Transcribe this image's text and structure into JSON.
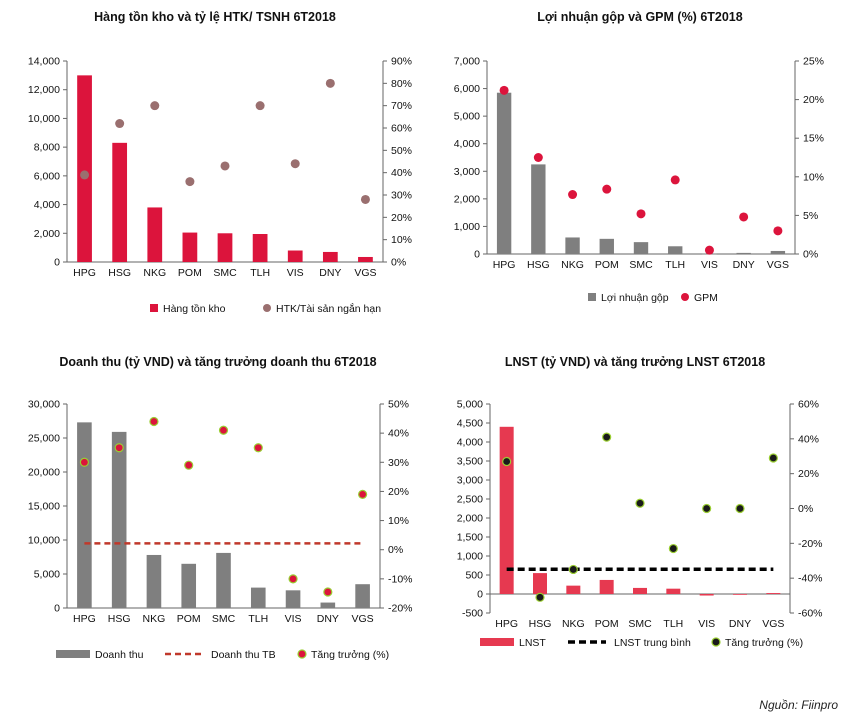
{
  "source": "Nguồn: Fiinpro",
  "colors": {
    "red": "#dc143c",
    "gray": "#7f7f7f",
    "mauve": "#9a6f6f",
    "lnst_red": "#e63950",
    "dark_dot": "#1a1a1a",
    "dot_edge_green": "#9acd32"
  },
  "chart_data": [
    {
      "type": "bar",
      "title": "Hàng tồn kho và tỷ lệ HTK/ TSNH 6T2018",
      "categories": [
        "HPG",
        "HSG",
        "NKG",
        "POM",
        "SMC",
        "TLH",
        "VIS",
        "DNY",
        "VGS"
      ],
      "left_ticks": [
        "0",
        "2,000",
        "4,000",
        "6,000",
        "8,000",
        "10,000",
        "12,000",
        "14,000"
      ],
      "right_ticks": [
        "0%",
        "10%",
        "20%",
        "30%",
        "40%",
        "50%",
        "60%",
        "70%",
        "80%",
        "90%"
      ],
      "ylim": [
        0,
        14000
      ],
      "y2lim": [
        0,
        90
      ],
      "series": [
        {
          "name": "Hàng tồn kho",
          "kind": "bar",
          "axis": "left",
          "color": "#dc143c",
          "values": [
            13000,
            8300,
            3800,
            2050,
            2000,
            1950,
            800,
            700,
            350
          ]
        },
        {
          "name": "HTK/Tài sản ngắn hạn",
          "kind": "dot",
          "axis": "right",
          "color": "#9a6f6f",
          "values": [
            39,
            62,
            70,
            36,
            43,
            70,
            44,
            80,
            28
          ]
        }
      ],
      "legend": "bottom"
    },
    {
      "type": "bar",
      "title": "Lợi nhuận gộp và GPM (%) 6T2018",
      "categories": [
        "HPG",
        "HSG",
        "NKG",
        "POM",
        "SMC",
        "TLH",
        "VIS",
        "DNY",
        "VGS"
      ],
      "left_ticks": [
        "0",
        "1,000",
        "2,000",
        "3,000",
        "4,000",
        "5,000",
        "6,000",
        "7,000"
      ],
      "right_ticks": [
        "0%",
        "5%",
        "10%",
        "15%",
        "20%",
        "25%"
      ],
      "ylim": [
        0,
        7000
      ],
      "y2lim": [
        0,
        25
      ],
      "series": [
        {
          "name": "Lợi nhuận gộp",
          "kind": "bar",
          "axis": "left",
          "color": "#7f7f7f",
          "values": [
            5850,
            3250,
            600,
            550,
            430,
            280,
            10,
            40,
            110
          ]
        },
        {
          "name": "GPM",
          "kind": "dot",
          "axis": "right",
          "color": "#dc143c",
          "values": [
            21.2,
            12.5,
            7.7,
            8.4,
            5.2,
            9.6,
            0.5,
            4.8,
            3.0
          ]
        }
      ],
      "legend": "bottom"
    },
    {
      "type": "bar",
      "title": "Doanh thu (tỷ VND) và tăng trưởng doanh thu 6T2018",
      "categories": [
        "HPG",
        "HSG",
        "NKG",
        "POM",
        "SMC",
        "TLH",
        "VIS",
        "DNY",
        "VGS"
      ],
      "left_ticks": [
        "0",
        "5,000",
        "10,000",
        "15,000",
        "20,000",
        "25,000",
        "30,000"
      ],
      "right_ticks": [
        "-20%",
        "-10%",
        "0%",
        "10%",
        "20%",
        "30%",
        "40%",
        "50%"
      ],
      "ylim": [
        0,
        30000
      ],
      "y2lim": [
        -20,
        50
      ],
      "series": [
        {
          "name": "Doanh thu",
          "kind": "bar",
          "axis": "left",
          "color": "#7f7f7f",
          "values": [
            27300,
            25900,
            7800,
            6500,
            8100,
            3000,
            2600,
            800,
            3500
          ]
        },
        {
          "name": "Doanh thu TB",
          "kind": "dashline",
          "axis": "left",
          "color": "#c0392b",
          "values": [
            9500,
            9500,
            9500,
            9500,
            9500,
            9500,
            9500,
            9500,
            9500
          ]
        },
        {
          "name": "Tăng trưởng (%)",
          "kind": "dot",
          "axis": "right",
          "color": "#dc143c",
          "values": [
            30,
            35,
            44,
            29,
            41,
            35,
            -10,
            -14.5,
            19
          ]
        }
      ],
      "legend": "bottom"
    },
    {
      "type": "bar",
      "title": "LNST (tỷ VND) và tăng trưởng LNST 6T2018",
      "categories": [
        "HPG",
        "HSG",
        "NKG",
        "POM",
        "SMC",
        "TLH",
        "VIS",
        "DNY",
        "VGS"
      ],
      "left_ticks": [
        "-500",
        "0",
        "500",
        "1,000",
        "1,500",
        "2,000",
        "2,500",
        "3,000",
        "3,500",
        "4,000",
        "4,500",
        "5,000"
      ],
      "right_ticks": [
        "-60%",
        "-40%",
        "-20%",
        "0%",
        "20%",
        "40%",
        "60%"
      ],
      "ylim": [
        -500,
        5000
      ],
      "y2lim": [
        -60,
        60
      ],
      "series": [
        {
          "name": "LNST",
          "kind": "bar",
          "axis": "left",
          "color": "#e63950",
          "values": [
            4400,
            550,
            220,
            370,
            160,
            140,
            -40,
            0,
            25
          ]
        },
        {
          "name": "LNST trung bình",
          "kind": "dashline",
          "axis": "left",
          "color": "#000000",
          "values": [
            650,
            650,
            650,
            650,
            650,
            650,
            650,
            650,
            650
          ]
        },
        {
          "name": "Tăng trưởng (%)",
          "kind": "dot",
          "axis": "right",
          "color": "#1a1a1a",
          "values": [
            27,
            -51,
            -35,
            41,
            3,
            -23,
            0,
            0,
            29
          ]
        }
      ],
      "legend": "bottom"
    }
  ]
}
